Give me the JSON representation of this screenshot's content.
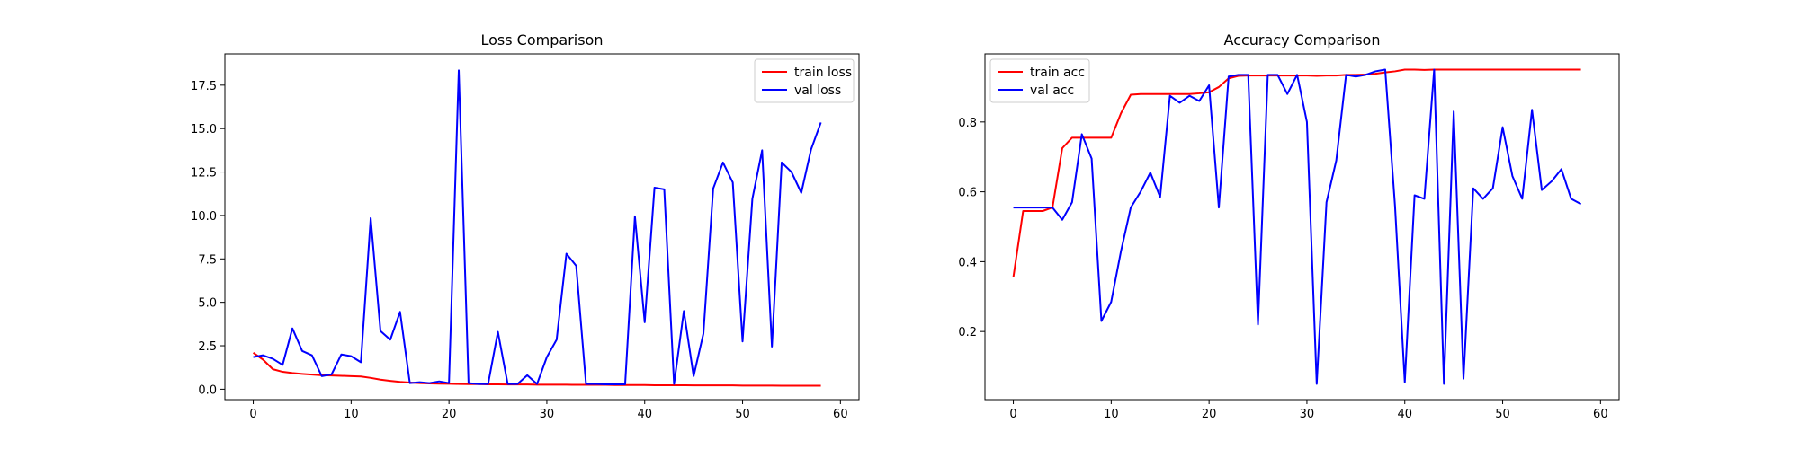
{
  "chart_data": [
    {
      "type": "line",
      "title": "Loss Comparison",
      "xlabel": "",
      "ylabel": "",
      "xlim": [
        -2.9,
        61.9
      ],
      "ylim": [
        -0.6,
        19.3
      ],
      "xticks": [
        0,
        10,
        20,
        30,
        40,
        50,
        60
      ],
      "yticks": [
        0.0,
        2.5,
        5.0,
        7.5,
        10.0,
        12.5,
        15.0,
        17.5
      ],
      "ytick_labels": [
        "0.0",
        "2.5",
        "5.0",
        "7.5",
        "10.0",
        "12.5",
        "15.0",
        "17.5"
      ],
      "grid": false,
      "legend_position": "upper right",
      "series": [
        {
          "name": "train loss",
          "color": "#ff0000",
          "x": [
            0,
            1,
            2,
            3,
            4,
            5,
            6,
            7,
            8,
            9,
            10,
            11,
            12,
            13,
            14,
            15,
            16,
            17,
            18,
            19,
            20,
            21,
            22,
            23,
            24,
            25,
            26,
            27,
            28,
            29,
            30,
            31,
            32,
            33,
            34,
            35,
            36,
            37,
            38,
            39,
            40,
            41,
            42,
            43,
            44,
            45,
            46,
            47,
            48,
            49,
            50,
            51,
            52,
            53,
            54,
            55,
            56,
            57,
            58
          ],
          "y": [
            2.1,
            1.7,
            1.15,
            1.0,
            0.93,
            0.88,
            0.84,
            0.8,
            0.79,
            0.77,
            0.75,
            0.73,
            0.65,
            0.55,
            0.48,
            0.42,
            0.38,
            0.35,
            0.33,
            0.32,
            0.31,
            0.3,
            0.29,
            0.29,
            0.28,
            0.28,
            0.27,
            0.27,
            0.27,
            0.26,
            0.26,
            0.26,
            0.26,
            0.25,
            0.25,
            0.25,
            0.25,
            0.24,
            0.24,
            0.24,
            0.24,
            0.23,
            0.23,
            0.23,
            0.23,
            0.22,
            0.22,
            0.22,
            0.22,
            0.22,
            0.21,
            0.21,
            0.21,
            0.21,
            0.2,
            0.2,
            0.2,
            0.2,
            0.2
          ]
        },
        {
          "name": "val loss",
          "color": "#0000ff",
          "x": [
            0,
            1,
            2,
            3,
            4,
            5,
            6,
            7,
            8,
            9,
            10,
            11,
            12,
            13,
            14,
            15,
            16,
            17,
            18,
            19,
            20,
            21,
            22,
            23,
            24,
            25,
            26,
            27,
            28,
            29,
            30,
            31,
            32,
            33,
            34,
            35,
            36,
            37,
            38,
            39,
            40,
            41,
            42,
            43,
            44,
            45,
            46,
            47,
            48,
            49,
            50,
            51,
            52,
            53,
            54,
            55,
            56,
            57,
            58
          ],
          "y": [
            1.85,
            1.95,
            1.75,
            1.4,
            3.5,
            2.2,
            1.95,
            0.75,
            0.85,
            2.0,
            1.9,
            1.55,
            9.85,
            3.35,
            2.85,
            4.45,
            0.35,
            0.4,
            0.35,
            0.45,
            0.35,
            18.35,
            0.35,
            0.3,
            0.3,
            3.3,
            0.3,
            0.3,
            0.8,
            0.3,
            1.85,
            2.85,
            7.8,
            7.1,
            0.3,
            0.3,
            0.28,
            0.28,
            0.28,
            9.95,
            3.85,
            11.6,
            11.5,
            0.3,
            4.5,
            0.75,
            3.2,
            11.55,
            13.05,
            11.9,
            2.75,
            10.95,
            13.75,
            2.45,
            13.05,
            12.5,
            11.3,
            13.8,
            15.35
          ]
        }
      ]
    },
    {
      "type": "line",
      "title": "Accuracy Comparison",
      "xlabel": "",
      "ylabel": "",
      "xlim": [
        -2.9,
        61.9
      ],
      "ylim": [
        0.005,
        0.995
      ],
      "xticks": [
        0,
        10,
        20,
        30,
        40,
        50,
        60
      ],
      "yticks": [
        0.2,
        0.4,
        0.6,
        0.8
      ],
      "ytick_labels": [
        "0.2",
        "0.4",
        "0.6",
        "0.8"
      ],
      "grid": false,
      "legend_position": "upper left",
      "series": [
        {
          "name": "train acc",
          "color": "#ff0000",
          "x": [
            0,
            1,
            2,
            3,
            4,
            5,
            6,
            7,
            8,
            9,
            10,
            11,
            12,
            13,
            14,
            15,
            16,
            17,
            18,
            19,
            20,
            21,
            22,
            23,
            24,
            25,
            26,
            27,
            28,
            29,
            30,
            31,
            32,
            33,
            34,
            35,
            36,
            37,
            38,
            39,
            40,
            41,
            42,
            43,
            44,
            45,
            46,
            47,
            48,
            49,
            50,
            51,
            52,
            53,
            54,
            55,
            56,
            57,
            58
          ],
          "y": [
            0.355,
            0.545,
            0.545,
            0.545,
            0.555,
            0.725,
            0.755,
            0.755,
            0.755,
            0.755,
            0.755,
            0.825,
            0.878,
            0.88,
            0.88,
            0.88,
            0.88,
            0.88,
            0.88,
            0.882,
            0.885,
            0.9,
            0.925,
            0.932,
            0.933,
            0.933,
            0.933,
            0.933,
            0.933,
            0.933,
            0.933,
            0.932,
            0.933,
            0.933,
            0.935,
            0.935,
            0.936,
            0.938,
            0.942,
            0.945,
            0.95,
            0.95,
            0.949,
            0.95,
            0.95,
            0.95,
            0.95,
            0.95,
            0.95,
            0.95,
            0.95,
            0.95,
            0.95,
            0.95,
            0.95,
            0.95,
            0.95,
            0.95,
            0.95
          ]
        },
        {
          "name": "val acc",
          "color": "#0000ff",
          "x": [
            0,
            1,
            2,
            3,
            4,
            5,
            6,
            7,
            8,
            9,
            10,
            11,
            12,
            13,
            14,
            15,
            16,
            17,
            18,
            19,
            20,
            21,
            22,
            23,
            24,
            25,
            26,
            27,
            28,
            29,
            30,
            31,
            32,
            33,
            34,
            35,
            36,
            37,
            38,
            39,
            40,
            41,
            42,
            43,
            44,
            45,
            46,
            47,
            48,
            49,
            50,
            51,
            52,
            53,
            54,
            55,
            56,
            57,
            58
          ],
          "y": [
            0.555,
            0.555,
            0.555,
            0.555,
            0.555,
            0.52,
            0.57,
            0.765,
            0.695,
            0.23,
            0.285,
            0.43,
            0.555,
            0.6,
            0.655,
            0.585,
            0.875,
            0.855,
            0.875,
            0.86,
            0.905,
            0.555,
            0.93,
            0.935,
            0.935,
            0.22,
            0.935,
            0.935,
            0.88,
            0.935,
            0.8,
            0.05,
            0.57,
            0.69,
            0.935,
            0.93,
            0.935,
            0.945,
            0.95,
            0.56,
            0.055,
            0.59,
            0.58,
            0.95,
            0.05,
            0.83,
            0.065,
            0.61,
            0.58,
            0.61,
            0.785,
            0.645,
            0.58,
            0.835,
            0.605,
            0.63,
            0.665,
            0.58,
            0.565
          ]
        }
      ]
    }
  ]
}
